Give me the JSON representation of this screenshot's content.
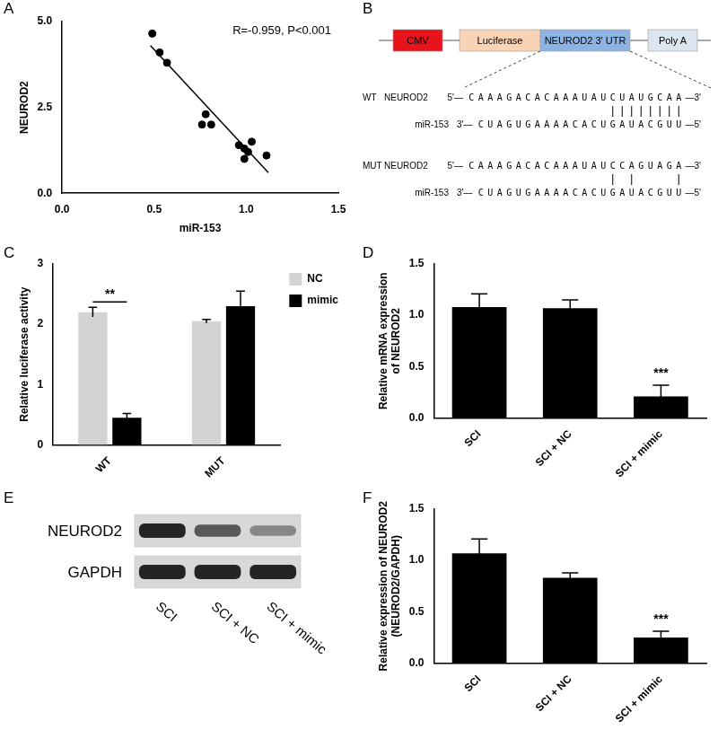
{
  "chart_data": [
    {
      "panel": "A",
      "type": "scatter",
      "x_label": "miR-153",
      "y_label": "NEUROD2",
      "annotation": "R=-0.959, P<0.001",
      "series": [
        {
          "type": "scatter",
          "color": "#000000",
          "marker": "circle",
          "x": [
            0.49,
            0.53,
            0.57,
            0.76,
            0.78,
            0.81,
            0.96,
            0.99,
            0.99,
            1.01,
            1.03,
            1.11
          ],
          "values": [
            4.65,
            4.1,
            3.8,
            2.0,
            2.3,
            2.0,
            1.4,
            1.3,
            1.0,
            1.2,
            1.5,
            1.1
          ]
        },
        {
          "type": "line",
          "color": "#000000",
          "line_style": "solid",
          "x": [
            0.48,
            1.12
          ],
          "values": [
            4.3,
            0.6
          ]
        }
      ],
      "xlim": [
        0,
        1.5
      ],
      "xticks": [
        {
          "value": 0,
          "label": "0.0"
        },
        0.5,
        {
          "value": 1,
          "label": "1.0"
        },
        1.5
      ],
      "ylim": [
        0,
        5
      ],
      "yticks": [
        {
          "value": 0,
          "label": "0.0"
        },
        2.5,
        {
          "value": 5,
          "label": "5.0"
        }
      ],
      "grid": false
    },
    {
      "panel": "C",
      "type": "bar",
      "categories": [
        "WT",
        "MUT"
      ],
      "series": [
        {
          "name": "NC",
          "color": "#d3d3d3",
          "values": [
            2.2,
            2.05
          ],
          "errors": [
            0.08,
            0.03
          ]
        },
        {
          "name": "mimic",
          "color": "#000000",
          "values": [
            0.45,
            2.3
          ],
          "errors": [
            0.07,
            0.25
          ]
        }
      ],
      "y_label": "Relative luciferase activity",
      "ylim": [
        0,
        3
      ],
      "yticks": [
        0,
        1,
        2,
        3
      ],
      "grid": false,
      "legend": "right",
      "annotations": [
        {
          "text": "**",
          "category": "WT"
        }
      ]
    },
    {
      "panel": "D",
      "type": "bar",
      "categories": [
        "SCI",
        "SCI + NC",
        "SCI + mimic"
      ],
      "series": [
        {
          "color": "#000000",
          "values": [
            1.08,
            1.07,
            0.21
          ],
          "errors": [
            0.13,
            0.08,
            0.11
          ]
        }
      ],
      "y_label": [
        "Relative mRNA expression",
        "of NEUROD2"
      ],
      "ylim": [
        0,
        1.5
      ],
      "yticks": [
        {
          "value": 0,
          "label": "0.0"
        },
        0.5,
        {
          "value": 1,
          "label": "1.0"
        },
        1.5
      ],
      "grid": false,
      "annotations": [
        {
          "text": "***",
          "category": "SCI + mimic"
        }
      ]
    },
    {
      "panel": "F",
      "type": "bar",
      "categories": [
        "SCI",
        "SCI + NC",
        "SCI + mimic"
      ],
      "series": [
        {
          "color": "#000000",
          "values": [
            1.07,
            0.83,
            0.25
          ],
          "errors": [
            0.14,
            0.05,
            0.06
          ]
        }
      ],
      "y_label": [
        "Relative expression of NEUROD2",
        "(NEUROD2/GAPDH)"
      ],
      "ylim": [
        0,
        1.5
      ],
      "yticks": [
        {
          "value": 0,
          "label": "0.0"
        },
        0.5,
        {
          "value": 1,
          "label": "1.0"
        },
        1.5
      ],
      "grid": false,
      "annotations": [
        {
          "text": "***",
          "category": "SCI + mimic"
        }
      ]
    }
  ],
  "diagram": {
    "panel": "B",
    "construct": [
      {
        "label": "CMV",
        "color": "#e8141c"
      },
      {
        "label": "Luciferase",
        "color": "#f9d3b5"
      },
      {
        "label": "NEUROD2  3' UTR",
        "color": "#8db3e2"
      },
      {
        "label": "Poly A",
        "color": "#dbe6f1"
      }
    ],
    "alignments": [
      {
        "label": "WT",
        "target_name": "NEUROD2",
        "target_start": "5'",
        "target": "CAAAGACACAAAUAUCUAUGCAA",
        "target_end": "3'",
        "mirna_name": "miR-153",
        "mirna_start": "3'",
        "mirna": "CUAGUGAAAACACUGAUACGUU",
        "mirna_end": "5'",
        "pairs": [
          15,
          16,
          17,
          18,
          19,
          20,
          21,
          22
        ]
      },
      {
        "label": "MUT",
        "target_name": "NEUROD2",
        "target_start": "5'",
        "target": "CAAAGACACAAAUAUCCAGUAGA",
        "target_end": "3'",
        "mirna_name": "miR-153",
        "mirna_start": "3'",
        "mirna": "CUAGUGAAAACACUGAUACGUU",
        "mirna_end": "5'",
        "pairs": [
          15,
          17,
          22
        ]
      }
    ]
  },
  "blot": {
    "panel": "E",
    "lanes": [
      "SCI",
      "SCI + NC",
      "SCI + mimic"
    ],
    "rows": [
      {
        "label": "NEUROD2",
        "intensity": [
          1.0,
          0.7,
          0.45
        ]
      },
      {
        "label": "GAPDH",
        "intensity": [
          1.0,
          1.0,
          1.0
        ]
      }
    ]
  }
}
